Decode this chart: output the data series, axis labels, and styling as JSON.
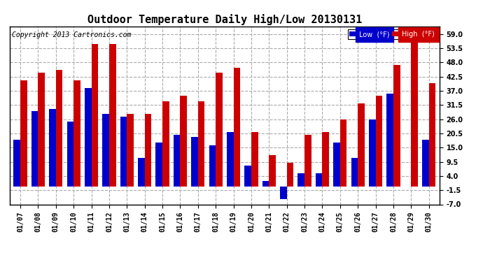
{
  "title": "Outdoor Temperature Daily High/Low 20130131",
  "copyright": "Copyright 2013 Cartronics.com",
  "legend_low": "Low  (°F)",
  "legend_high": "High  (°F)",
  "dates": [
    "01/07",
    "01/08",
    "01/09",
    "01/10",
    "01/11",
    "01/12",
    "01/13",
    "01/14",
    "01/15",
    "01/16",
    "01/17",
    "01/18",
    "01/19",
    "01/20",
    "01/21",
    "01/22",
    "01/23",
    "01/24",
    "01/25",
    "01/26",
    "01/27",
    "01/28",
    "01/29",
    "01/30"
  ],
  "high": [
    41,
    44,
    45,
    41,
    55,
    55,
    28,
    28,
    33,
    35,
    33,
    44,
    46,
    21,
    12,
    9,
    20,
    21,
    26,
    32,
    35,
    47,
    60,
    40
  ],
  "low": [
    18,
    29,
    30,
    25,
    38,
    28,
    27,
    11,
    17,
    20,
    19,
    16,
    21,
    8,
    2,
    -5,
    5,
    5,
    17,
    11,
    26,
    36,
    0,
    18
  ],
  "ylim": [
    -7,
    62
  ],
  "yticks": [
    -7.0,
    -1.5,
    4.0,
    9.5,
    15.0,
    20.5,
    26.0,
    31.5,
    37.0,
    42.5,
    48.0,
    53.5,
    59.0
  ],
  "bar_width": 0.38,
  "low_color": "#0000cc",
  "high_color": "#cc0000",
  "bg_color": "#ffffff",
  "plot_bg_color": "#ffffff",
  "grid_color": "#aaaaaa",
  "title_fontsize": 11,
  "tick_fontsize": 7,
  "copyright_fontsize": 7
}
